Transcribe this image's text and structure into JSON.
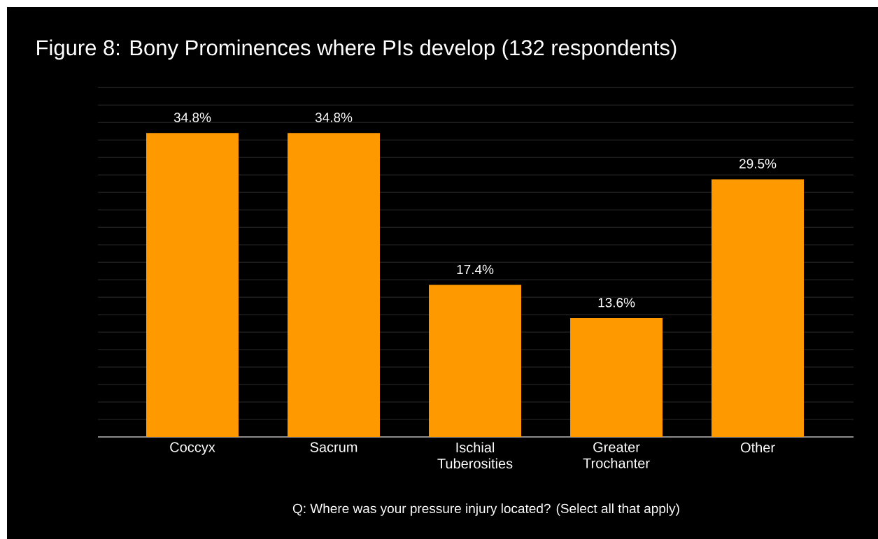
{
  "chart_data": {
    "type": "bar",
    "title": "Figure 8: Bony Prominences where PIs develop (132 respondents)",
    "xlabel": "Q: Where was your pressure injury located? (Select all that apply)",
    "categories": [
      "Coccyx",
      "Sacrum",
      "Ischial Tuberosities",
      "Greater Trochanter",
      "Other"
    ],
    "values": [
      34.8,
      34.8,
      17.4,
      13.6,
      29.5
    ],
    "value_labels": [
      "34.8%",
      "34.8%",
      "17.4%",
      "13.6%",
      "29.5%"
    ],
    "color": "#ff9900",
    "tick_labels": "x",
    "grid": "y"
  }
}
